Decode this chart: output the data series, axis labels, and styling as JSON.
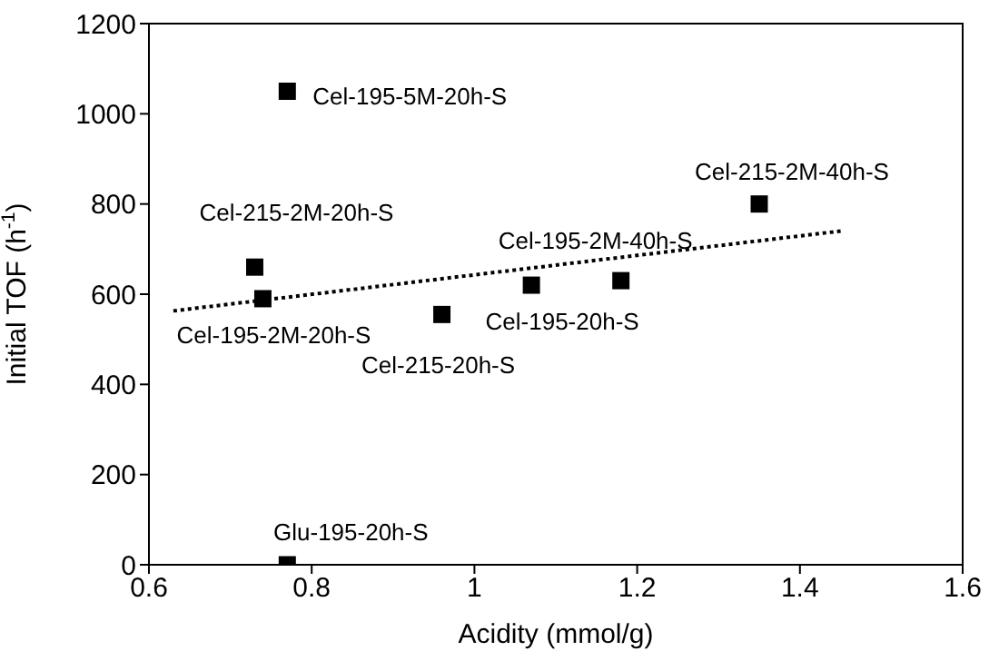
{
  "chart_data": {
    "type": "scatter",
    "xlabel": "Acidity (mmol/g)",
    "ylabel": "Initial TOF (h$^{-1}$)",
    "xlim": [
      0.6,
      1.6
    ],
    "xticks": [
      {
        "value": 0.6,
        "label": "0.6"
      },
      {
        "value": 0.8,
        "label": "0.8"
      },
      1,
      {
        "value": 1.2,
        "label": "1.2"
      },
      {
        "value": 1.4,
        "label": "1.4"
      },
      {
        "value": 1.6,
        "label": "1.6"
      }
    ],
    "ylim": [
      0,
      1200
    ],
    "yticks": [
      0,
      200,
      400,
      600,
      800,
      1000,
      1200
    ],
    "grid": false,
    "legend": false,
    "series": [
      {
        "color": "#000000",
        "marker": "square",
        "x": [
          0.77,
          0.73,
          0.74,
          0.96,
          1.07,
          1.18,
          1.35,
          0.77
        ],
        "values": [
          1050,
          660,
          590,
          555,
          620,
          630,
          800,
          0
        ]
      },
      {
        "type": "line",
        "color": "#000000",
        "marker": "none",
        "line_style": "dotted",
        "x": [
          0.63,
          1.45
        ],
        "values": [
          563,
          740
        ]
      }
    ],
    "annotations": [
      {
        "text": "Cel-195-5M-20h-S",
        "x": 0.77,
        "y": 1050
      },
      {
        "text": "Cel-215-2M-20h-S",
        "x": 0.73,
        "y": 660
      },
      {
        "text": "Cel-195-2M-20h-S",
        "x": 0.74,
        "y": 590
      },
      {
        "text": "Cel-215-20h-S",
        "x": 0.96,
        "y": 555
      },
      {
        "text": "Cel-195-20h-S",
        "x": 1.07,
        "y": 620
      },
      {
        "text": "Cel-195-2M-40h-S",
        "x": 1.18,
        "y": 630
      },
      {
        "text": "Cel-215-2M-40h-S",
        "x": 1.35,
        "y": 800
      },
      {
        "text": "Glu-195-20h-S",
        "x": 0.77,
        "y": 0
      }
    ]
  }
}
